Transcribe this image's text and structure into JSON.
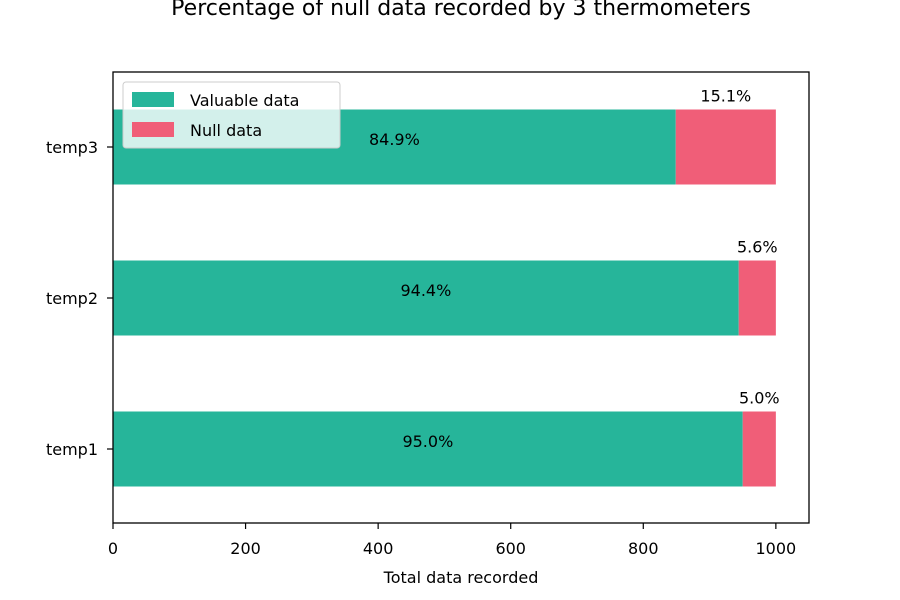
{
  "chart_data": {
    "type": "bar",
    "orientation": "horizontal",
    "stacked": true,
    "title": "Percentage of null data recorded by 3 thermometers",
    "xlabel": "Total data recorded",
    "ylabel": "",
    "xlim": [
      0,
      1050
    ],
    "xticks": [
      0,
      200,
      400,
      600,
      800,
      1000
    ],
    "categories": [
      "temp1",
      "temp2",
      "temp3"
    ],
    "series": [
      {
        "name": "Valuable data",
        "color": "#26b59a",
        "values": [
          950,
          944,
          849
        ],
        "labels": [
          "95.0%",
          "94.4%",
          "84.9%"
        ]
      },
      {
        "name": "Null data",
        "color": "#f05e78",
        "values": [
          50,
          56,
          151
        ],
        "labels": [
          "5.0%",
          "5.6%",
          "15.1%"
        ]
      }
    ],
    "grid": false,
    "legend_position": "top-left"
  }
}
